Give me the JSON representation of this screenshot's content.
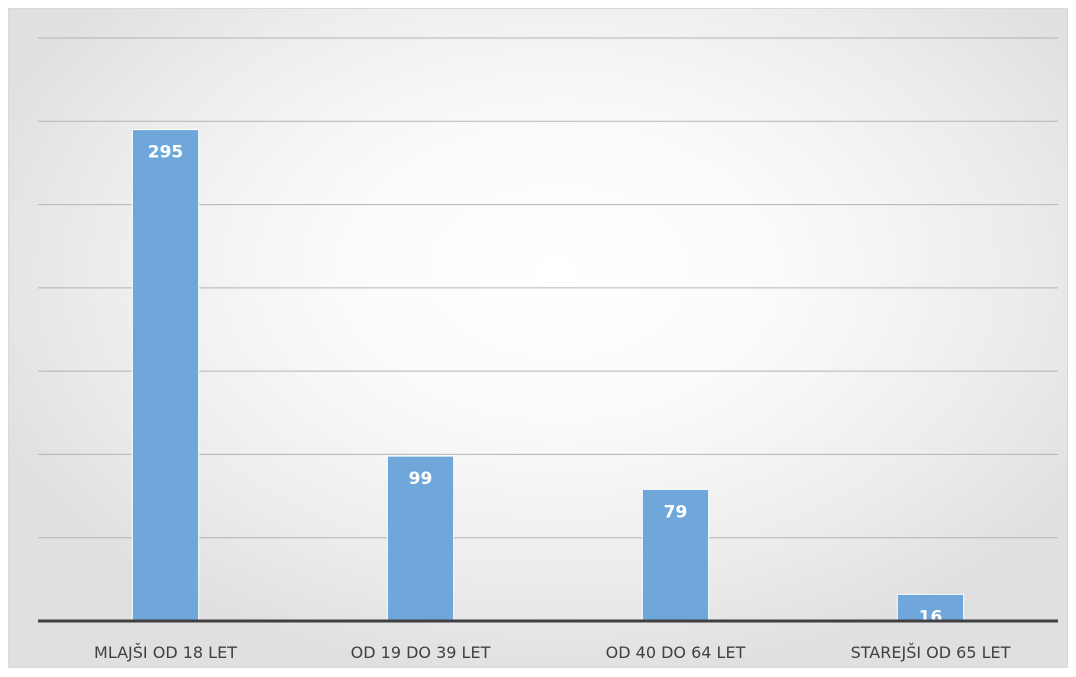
{
  "chart_data": {
    "type": "bar",
    "categories": [
      "MLAJŠI OD 18 LET",
      "OD 19 DO 39 LET",
      "OD 40 DO 64 LET",
      "STAREJŠI OD 65 LET"
    ],
    "values": [
      295,
      99,
      79,
      16
    ],
    "title": "",
    "xlabel": "",
    "ylabel": "",
    "ylim": [
      0,
      350
    ],
    "ytick_step": 50,
    "grid": true,
    "y_tick_labels_shown": false,
    "bar_color": "#6fa7da",
    "data_label_color": "#ffffff"
  }
}
